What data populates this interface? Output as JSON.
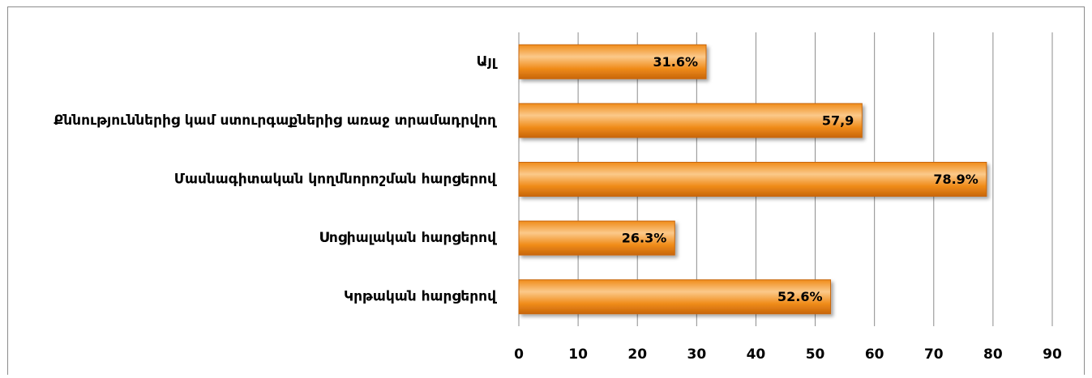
{
  "chart_data": {
    "type": "bar",
    "orientation": "horizontal",
    "categories": [
      "Այլ",
      "Քննություններից կամ ստուրգաքներից առաջ տրամադրվող",
      "Մասնագիտական կողմնորոշման հարցերով",
      "Սոցիալական հարցերով",
      "Կրթական հարցերով"
    ],
    "values": [
      31.6,
      57.9,
      78.9,
      26.3,
      52.6
    ],
    "value_labels": [
      "31.6%",
      "57,9",
      "78.9%",
      "26.3%",
      "52.6%"
    ],
    "color": "#f08c1a",
    "xlim": [
      0,
      90
    ],
    "xticks": [
      0,
      10,
      20,
      30,
      40,
      50,
      60,
      70,
      80,
      90
    ],
    "grid": true
  }
}
